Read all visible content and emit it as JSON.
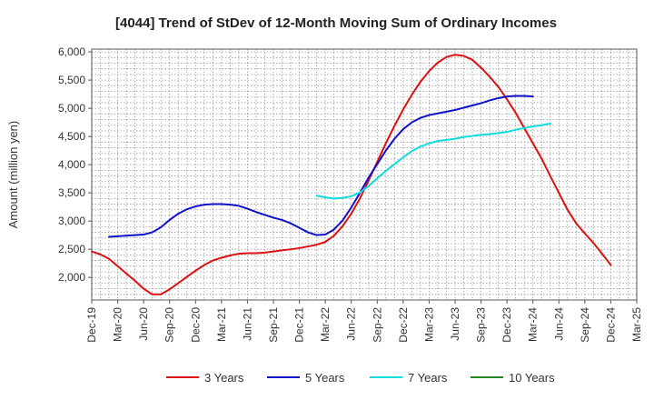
{
  "chart_data": {
    "type": "line",
    "title": "[4044]  Trend of StDev of 12-Month Moving Sum of Ordinary Incomes",
    "xlabel": "",
    "ylabel": "Amount (million yen)",
    "ylim": [
      1600,
      6050
    ],
    "yticks": [
      2000,
      2500,
      3000,
      3500,
      4000,
      4500,
      5000,
      5500,
      6000
    ],
    "ytick_labels": [
      "2,000",
      "2,500",
      "3,000",
      "3,500",
      "4,000",
      "4,500",
      "5,000",
      "5,500",
      "6,000"
    ],
    "x_tick_labels": [
      "Dec-19",
      "Mar-20",
      "Jun-20",
      "Sep-20",
      "Dec-20",
      "Mar-21",
      "Jun-21",
      "Sep-21",
      "Dec-21",
      "Mar-22",
      "Jun-22",
      "Sep-22",
      "Dec-22",
      "Mar-23",
      "Jun-23",
      "Sep-23",
      "Dec-23",
      "Mar-24",
      "Jun-24",
      "Sep-24",
      "Dec-24",
      "Mar-25"
    ],
    "x_start": "Dec-19",
    "x_unit": "months since Dec-19",
    "xlim": [
      0,
      63
    ],
    "grid": true,
    "legend_position": "bottom",
    "series": [
      {
        "name": "3 Years",
        "color": "#dd1111",
        "points": [
          [
            0,
            2460
          ],
          [
            1,
            2410
          ],
          [
            2,
            2330
          ],
          [
            3,
            2200
          ],
          [
            4,
            2070
          ],
          [
            5,
            1940
          ],
          [
            6,
            1800
          ],
          [
            7,
            1700
          ],
          [
            8,
            1700
          ],
          [
            9,
            1790
          ],
          [
            10,
            1900
          ],
          [
            11,
            2010
          ],
          [
            12,
            2120
          ],
          [
            13,
            2220
          ],
          [
            14,
            2300
          ],
          [
            15,
            2350
          ],
          [
            16,
            2390
          ],
          [
            17,
            2420
          ],
          [
            18,
            2430
          ],
          [
            19,
            2430
          ],
          [
            20,
            2440
          ],
          [
            21,
            2460
          ],
          [
            22,
            2480
          ],
          [
            23,
            2500
          ],
          [
            24,
            2520
          ],
          [
            25,
            2550
          ],
          [
            26,
            2580
          ],
          [
            27,
            2630
          ],
          [
            28,
            2740
          ],
          [
            29,
            2910
          ],
          [
            30,
            3130
          ],
          [
            31,
            3400
          ],
          [
            32,
            3720
          ],
          [
            33,
            4050
          ],
          [
            34,
            4380
          ],
          [
            35,
            4690
          ],
          [
            36,
            4980
          ],
          [
            37,
            5240
          ],
          [
            38,
            5470
          ],
          [
            39,
            5660
          ],
          [
            40,
            5810
          ],
          [
            41,
            5910
          ],
          [
            42,
            5950
          ],
          [
            43,
            5930
          ],
          [
            44,
            5860
          ],
          [
            45,
            5720
          ],
          [
            46,
            5560
          ],
          [
            47,
            5380
          ],
          [
            48,
            5160
          ],
          [
            49,
            4920
          ],
          [
            50,
            4650
          ],
          [
            51,
            4380
          ],
          [
            52,
            4110
          ],
          [
            53,
            3800
          ],
          [
            54,
            3500
          ],
          [
            55,
            3200
          ],
          [
            56,
            2960
          ],
          [
            57,
            2780
          ],
          [
            58,
            2610
          ],
          [
            59,
            2420
          ],
          [
            60,
            2220
          ]
        ]
      },
      {
        "name": "5 Years",
        "color": "#1111cc",
        "points": [
          [
            2,
            2720
          ],
          [
            3,
            2730
          ],
          [
            4,
            2740
          ],
          [
            5,
            2750
          ],
          [
            6,
            2760
          ],
          [
            7,
            2800
          ],
          [
            8,
            2890
          ],
          [
            9,
            3020
          ],
          [
            10,
            3130
          ],
          [
            11,
            3210
          ],
          [
            12,
            3260
          ],
          [
            13,
            3290
          ],
          [
            14,
            3300
          ],
          [
            15,
            3300
          ],
          [
            16,
            3290
          ],
          [
            17,
            3270
          ],
          [
            18,
            3220
          ],
          [
            19,
            3160
          ],
          [
            20,
            3110
          ],
          [
            21,
            3060
          ],
          [
            22,
            3020
          ],
          [
            23,
            2960
          ],
          [
            24,
            2880
          ],
          [
            25,
            2800
          ],
          [
            26,
            2750
          ],
          [
            27,
            2760
          ],
          [
            28,
            2850
          ],
          [
            29,
            3010
          ],
          [
            30,
            3240
          ],
          [
            31,
            3500
          ],
          [
            32,
            3770
          ],
          [
            33,
            4010
          ],
          [
            34,
            4250
          ],
          [
            35,
            4460
          ],
          [
            36,
            4630
          ],
          [
            37,
            4750
          ],
          [
            38,
            4830
          ],
          [
            39,
            4880
          ],
          [
            40,
            4910
          ],
          [
            41,
            4940
          ],
          [
            42,
            4970
          ],
          [
            43,
            5010
          ],
          [
            44,
            5050
          ],
          [
            45,
            5090
          ],
          [
            46,
            5140
          ],
          [
            47,
            5180
          ],
          [
            48,
            5210
          ],
          [
            49,
            5220
          ],
          [
            50,
            5220
          ],
          [
            51,
            5210
          ]
        ]
      },
      {
        "name": "7 Years",
        "color": "#11dddd",
        "points": [
          [
            26,
            3450
          ],
          [
            27,
            3420
          ],
          [
            28,
            3400
          ],
          [
            29,
            3410
          ],
          [
            30,
            3440
          ],
          [
            31,
            3510
          ],
          [
            32,
            3620
          ],
          [
            33,
            3760
          ],
          [
            34,
            3890
          ],
          [
            35,
            4010
          ],
          [
            36,
            4130
          ],
          [
            37,
            4240
          ],
          [
            38,
            4320
          ],
          [
            39,
            4380
          ],
          [
            40,
            4420
          ],
          [
            41,
            4440
          ],
          [
            42,
            4460
          ],
          [
            43,
            4490
          ],
          [
            44,
            4510
          ],
          [
            45,
            4530
          ],
          [
            46,
            4540
          ],
          [
            47,
            4560
          ],
          [
            48,
            4580
          ],
          [
            49,
            4620
          ],
          [
            50,
            4650
          ],
          [
            51,
            4680
          ],
          [
            52,
            4700
          ],
          [
            53,
            4730
          ]
        ]
      },
      {
        "name": "10 Years",
        "color": "#228822",
        "points": []
      }
    ]
  }
}
